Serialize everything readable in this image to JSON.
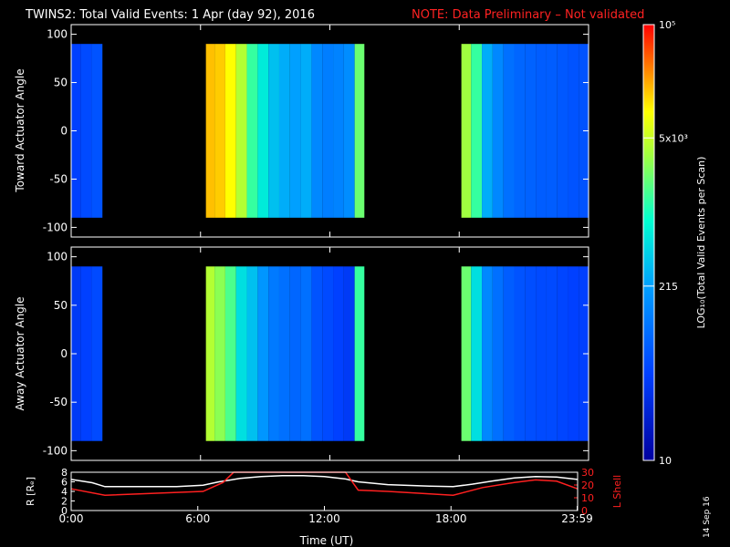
{
  "header": {
    "title": "TWINS2: Total Valid Events:  1 Apr (day  92), 2016",
    "note": "NOTE: Data Preliminary – Not validated"
  },
  "stamp": "14 Sep 16",
  "chart_data": [
    {
      "type": "heatmap",
      "title": "",
      "ylabel": "Toward Actuator Angle",
      "xlabel": "",
      "xlim": [
        0,
        24
      ],
      "ylim": [
        -110,
        110
      ],
      "y_ticks": [
        100,
        50,
        0,
        -50,
        -100
      ],
      "tick_labels": [
        "100",
        "50",
        "0",
        "-50",
        "-100"
      ],
      "coverage_hours": [
        [
          0.0,
          1.6
        ],
        [
          6.25,
          13.6
        ],
        [
          18.1,
          24.0
        ]
      ],
      "angle_range": [
        -90,
        90
      ],
      "columns": [
        {
          "t": 0.2,
          "level": 0.2
        },
        {
          "t": 0.7,
          "level": 0.22
        },
        {
          "t": 1.2,
          "level": 0.24
        },
        {
          "t": 6.4,
          "level": 0.85
        },
        {
          "t": 6.9,
          "level": 0.84
        },
        {
          "t": 7.4,
          "level": 0.8
        },
        {
          "t": 7.9,
          "level": 0.72
        },
        {
          "t": 8.4,
          "level": 0.6
        },
        {
          "t": 8.9,
          "level": 0.52
        },
        {
          "t": 9.4,
          "level": 0.45
        },
        {
          "t": 9.9,
          "level": 0.42
        },
        {
          "t": 10.4,
          "level": 0.4
        },
        {
          "t": 10.9,
          "level": 0.42
        },
        {
          "t": 11.4,
          "level": 0.35
        },
        {
          "t": 11.9,
          "level": 0.33
        },
        {
          "t": 12.4,
          "level": 0.34
        },
        {
          "t": 12.9,
          "level": 0.36
        },
        {
          "t": 13.4,
          "level": 0.65
        },
        {
          "t": 18.3,
          "level": 0.7
        },
        {
          "t": 18.8,
          "level": 0.6
        },
        {
          "t": 19.3,
          "level": 0.42
        },
        {
          "t": 19.8,
          "level": 0.35
        },
        {
          "t": 20.3,
          "level": 0.3
        },
        {
          "t": 20.8,
          "level": 0.28
        },
        {
          "t": 21.3,
          "level": 0.27
        },
        {
          "t": 21.8,
          "level": 0.26
        },
        {
          "t": 22.3,
          "level": 0.26
        },
        {
          "t": 22.8,
          "level": 0.25
        },
        {
          "t": 23.3,
          "level": 0.24
        },
        {
          "t": 23.8,
          "level": 0.24
        }
      ]
    },
    {
      "type": "heatmap",
      "title": "",
      "ylabel": "Away Actuator Angle",
      "xlabel": "",
      "xlim": [
        0,
        24
      ],
      "ylim": [
        -110,
        110
      ],
      "y_ticks": [
        100,
        50,
        0,
        -50,
        -100
      ],
      "tick_labels": [
        "100",
        "50",
        "0",
        "-50",
        "-100"
      ],
      "coverage_hours": [
        [
          0.0,
          1.6
        ],
        [
          6.25,
          13.6
        ],
        [
          18.1,
          24.0
        ]
      ],
      "angle_range": [
        -90,
        90
      ],
      "columns": [
        {
          "t": 0.2,
          "level": 0.18
        },
        {
          "t": 0.7,
          "level": 0.2
        },
        {
          "t": 1.2,
          "level": 0.22
        },
        {
          "t": 6.4,
          "level": 0.72
        },
        {
          "t": 6.9,
          "level": 0.68
        },
        {
          "t": 7.4,
          "level": 0.62
        },
        {
          "t": 7.9,
          "level": 0.5
        },
        {
          "t": 8.4,
          "level": 0.45
        },
        {
          "t": 8.9,
          "level": 0.38
        },
        {
          "t": 9.4,
          "level": 0.32
        },
        {
          "t": 9.9,
          "level": 0.3
        },
        {
          "t": 10.4,
          "level": 0.28
        },
        {
          "t": 10.9,
          "level": 0.3
        },
        {
          "t": 11.4,
          "level": 0.24
        },
        {
          "t": 11.9,
          "level": 0.22
        },
        {
          "t": 12.4,
          "level": 0.2
        },
        {
          "t": 12.9,
          "level": 0.18
        },
        {
          "t": 13.4,
          "level": 0.6
        },
        {
          "t": 18.3,
          "level": 0.65
        },
        {
          "t": 18.8,
          "level": 0.5
        },
        {
          "t": 19.3,
          "level": 0.35
        },
        {
          "t": 19.8,
          "level": 0.3
        },
        {
          "t": 20.3,
          "level": 0.26
        },
        {
          "t": 20.8,
          "level": 0.24
        },
        {
          "t": 21.3,
          "level": 0.23
        },
        {
          "t": 21.8,
          "level": 0.22
        },
        {
          "t": 22.3,
          "level": 0.22
        },
        {
          "t": 22.8,
          "level": 0.21
        },
        {
          "t": 23.3,
          "level": 0.2
        },
        {
          "t": 23.8,
          "level": 0.2
        }
      ]
    },
    {
      "type": "line",
      "title": "",
      "xlabel": "Time (UT)",
      "ylabel": "R [Rₑ]",
      "y2label": "L Shell",
      "xlim": [
        0,
        24
      ],
      "ylim": [
        0,
        8
      ],
      "y2lim": [
        0,
        30
      ],
      "x_ticks": [
        0,
        6,
        12,
        18,
        23.98
      ],
      "x_tick_labels": [
        "0:00",
        "6:00",
        "12:00",
        "18:00",
        "23:59"
      ],
      "y_ticks": [
        0,
        2,
        4,
        6,
        8
      ],
      "y_tick_labels": [
        "0",
        "2",
        "4",
        "6",
        "8"
      ],
      "y2_ticks": [
        0,
        10,
        20,
        30
      ],
      "y2_tick_labels": [
        "0",
        "10",
        "20",
        "30"
      ],
      "series": [
        {
          "color": "#ffffff",
          "axis": "left",
          "x": [
            0,
            1,
            1.6,
            3,
            5,
            6.25,
            7,
            8,
            9,
            10,
            11,
            12,
            13,
            13.6,
            15,
            17,
            18.1,
            19,
            20,
            21,
            22,
            23,
            24
          ],
          "y": [
            6.5,
            5.8,
            5.0,
            5.0,
            5.0,
            5.3,
            6.0,
            6.7,
            7.1,
            7.3,
            7.3,
            7.1,
            6.6,
            6.0,
            5.4,
            5.1,
            5.0,
            5.5,
            6.2,
            6.8,
            7.1,
            7.0,
            6.5
          ]
        },
        {
          "color": "#ff2020",
          "axis": "right",
          "x": [
            0,
            1.6,
            6.25,
            7.2,
            7.7,
            13.0,
            13.6,
            15,
            18.1,
            19.5,
            21,
            22,
            23,
            24
          ],
          "y": [
            17,
            12,
            15,
            22,
            30,
            30,
            16,
            15,
            12,
            18,
            22,
            24,
            23,
            17
          ]
        }
      ]
    }
  ],
  "colorbar": {
    "label": "LOG₁₀(Total Valid Events per Scan)",
    "ticks": [
      {
        "label": "10⁵",
        "frac": 1.0
      },
      {
        "label": "5x10³",
        "frac": 0.74
      },
      {
        "label": "215",
        "frac": 0.4
      },
      {
        "label": "10",
        "frac": 0.0
      }
    ]
  }
}
